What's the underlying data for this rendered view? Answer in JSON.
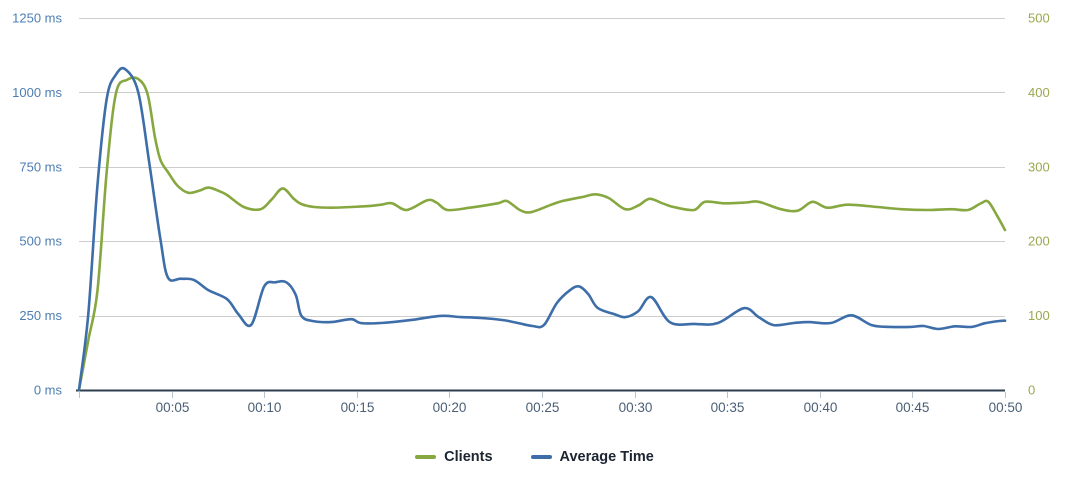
{
  "chart_data": {
    "type": "line",
    "title": "",
    "grid": true,
    "legend_position": "bottom",
    "x_axis": {
      "range": [
        0,
        50
      ],
      "tick_times": [
        0,
        5,
        10,
        15,
        20,
        25,
        30,
        35,
        40,
        45,
        50
      ],
      "tick_labels": [
        "",
        "00:05",
        "00:10",
        "00:15",
        "00:20",
        "00:25",
        "00:30",
        "00:35",
        "00:40",
        "00:45",
        "00:50"
      ],
      "label_color": "#4a5f76",
      "axis_line_color": "#2c3e50",
      "tick_mark_color": "#b8c2cc"
    },
    "y_axis_left": {
      "range": [
        0,
        1250
      ],
      "tick_values": [
        0,
        250,
        500,
        750,
        1000,
        1250
      ],
      "tick_labels": [
        "0 ms",
        "250 ms",
        "500 ms",
        "750 ms",
        "1000 ms",
        "1250 ms"
      ],
      "label_color": "#4d7db3"
    },
    "y_axis_right": {
      "range": [
        0,
        500
      ],
      "tick_values": [
        0,
        100,
        200,
        300,
        400,
        500
      ],
      "tick_labels": [
        "0",
        "100",
        "200",
        "300",
        "400",
        "500"
      ],
      "label_color": "#9ca750"
    },
    "gridline_color": "#cdcdcd",
    "series": [
      {
        "name": "Clients",
        "axis": "right",
        "color": "#87a840",
        "points": [
          [
            0,
            0
          ],
          [
            0.5,
            67
          ],
          [
            1,
            134
          ],
          [
            1.5,
            295
          ],
          [
            2,
            399
          ],
          [
            2.6,
            417
          ],
          [
            3.2,
            418
          ],
          [
            3.7,
            398
          ],
          [
            4.1,
            340
          ],
          [
            4.4,
            309
          ],
          [
            4.8,
            293
          ],
          [
            5.3,
            275
          ],
          [
            5.9,
            265
          ],
          [
            6.5,
            268
          ],
          [
            7,
            272
          ],
          [
            7.6,
            267
          ],
          [
            8,
            262
          ],
          [
            8.9,
            246
          ],
          [
            9.8,
            243
          ],
          [
            10.4,
            256
          ],
          [
            11,
            271
          ],
          [
            11.6,
            257
          ],
          [
            12,
            250
          ],
          [
            12.7,
            246
          ],
          [
            13.6,
            245
          ],
          [
            14.7,
            246
          ],
          [
            15.5,
            247
          ],
          [
            16.3,
            249
          ],
          [
            16.9,
            251
          ],
          [
            17.7,
            242
          ],
          [
            18.8,
            255
          ],
          [
            19.3,
            252
          ],
          [
            19.9,
            242
          ],
          [
            21.1,
            245
          ],
          [
            22.6,
            251
          ],
          [
            23.1,
            254
          ],
          [
            23.8,
            242
          ],
          [
            24.4,
            239
          ],
          [
            25.5,
            249
          ],
          [
            26.1,
            254
          ],
          [
            27.1,
            259
          ],
          [
            27.9,
            263
          ],
          [
            28.6,
            258
          ],
          [
            29.5,
            243
          ],
          [
            30.2,
            248
          ],
          [
            30.8,
            257
          ],
          [
            31.5,
            251
          ],
          [
            32.1,
            246
          ],
          [
            33.2,
            242
          ],
          [
            33.8,
            253
          ],
          [
            34.8,
            251
          ],
          [
            36,
            252
          ],
          [
            36.7,
            253
          ],
          [
            37.9,
            243
          ],
          [
            38.8,
            241
          ],
          [
            39.6,
            253
          ],
          [
            40.4,
            245
          ],
          [
            41.5,
            249
          ],
          [
            43.1,
            246
          ],
          [
            44.4,
            243
          ],
          [
            45.8,
            242
          ],
          [
            47.1,
            243
          ],
          [
            48,
            242
          ],
          [
            48.7,
            251
          ],
          [
            49.1,
            253
          ],
          [
            49.6,
            233
          ],
          [
            50,
            215
          ]
        ]
      },
      {
        "name": "Average Time",
        "axis": "left",
        "color": "#3d6ea9",
        "points": [
          [
            0,
            0
          ],
          [
            0.5,
            255
          ],
          [
            1,
            690
          ],
          [
            1.5,
            980
          ],
          [
            2,
            1060
          ],
          [
            2.5,
            1078
          ],
          [
            3.2,
            1000
          ],
          [
            3.8,
            760
          ],
          [
            4.4,
            505
          ],
          [
            4.8,
            378
          ],
          [
            5.5,
            374
          ],
          [
            6.2,
            370
          ],
          [
            7,
            335
          ],
          [
            8,
            305
          ],
          [
            8.6,
            255
          ],
          [
            9.3,
            219
          ],
          [
            10,
            348
          ],
          [
            10.6,
            362
          ],
          [
            11.2,
            362
          ],
          [
            11.7,
            320
          ],
          [
            12,
            250
          ],
          [
            12.6,
            232
          ],
          [
            13.6,
            228
          ],
          [
            14.7,
            238
          ],
          [
            15.2,
            225
          ],
          [
            16.3,
            225
          ],
          [
            17.9,
            235
          ],
          [
            19.5,
            249
          ],
          [
            20.6,
            245
          ],
          [
            21.7,
            242
          ],
          [
            22.9,
            235
          ],
          [
            23.7,
            225
          ],
          [
            24.5,
            215
          ],
          [
            25.1,
            218
          ],
          [
            25.8,
            292
          ],
          [
            26.5,
            335
          ],
          [
            27,
            348
          ],
          [
            27.5,
            322
          ],
          [
            28,
            276
          ],
          [
            28.9,
            255
          ],
          [
            29.5,
            245
          ],
          [
            30.2,
            265
          ],
          [
            30.9,
            312
          ],
          [
            31.9,
            228
          ],
          [
            33.2,
            222
          ],
          [
            34.5,
            225
          ],
          [
            35.9,
            275
          ],
          [
            36.7,
            245
          ],
          [
            37.5,
            218
          ],
          [
            38.6,
            225
          ],
          [
            39.4,
            228
          ],
          [
            40.6,
            225
          ],
          [
            41.7,
            251
          ],
          [
            42.8,
            218
          ],
          [
            43.8,
            212
          ],
          [
            44.9,
            212
          ],
          [
            45.6,
            215
          ],
          [
            46.4,
            205
          ],
          [
            47.3,
            214
          ],
          [
            48.2,
            212
          ],
          [
            48.9,
            224
          ],
          [
            49.7,
            232
          ],
          [
            50,
            233
          ]
        ]
      }
    ]
  },
  "legend": {
    "items": [
      {
        "label": "Clients",
        "color": "#87a840"
      },
      {
        "label": "Average Time",
        "color": "#3d6ea9"
      }
    ]
  }
}
